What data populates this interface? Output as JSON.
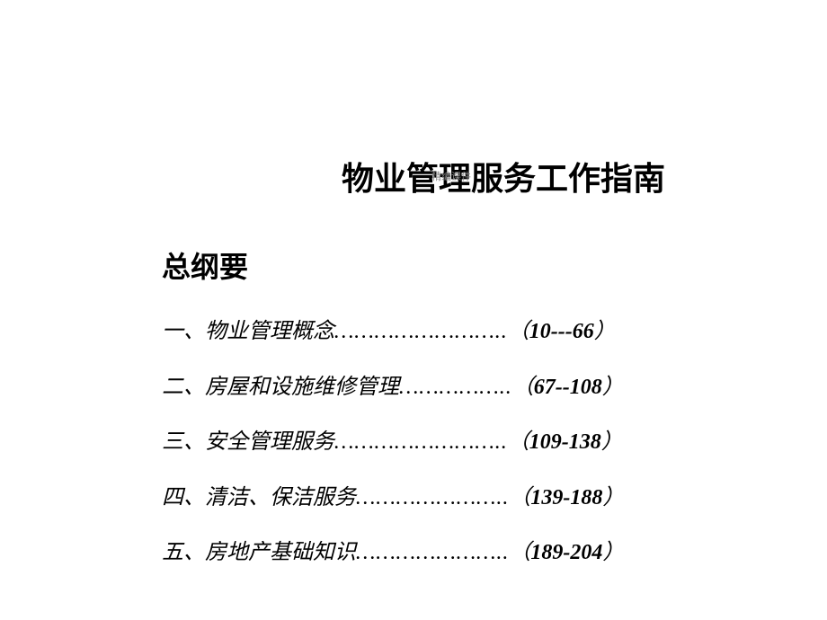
{
  "document": {
    "main_title": "物业管理服务工作指南",
    "watermark": "精编课件",
    "subtitle": "总纲要",
    "background_color": "#ffffff",
    "text_color": "#000000",
    "title_fontsize": 36,
    "subtitle_fontsize": 32,
    "item_fontsize": 24
  },
  "toc": [
    {
      "number": "一、",
      "text": "物业管理概念",
      "dots": "……………………..",
      "paren_open": "（",
      "pages": "10---66",
      "paren_close": "）"
    },
    {
      "number": "二、",
      "text": "房屋和设施维修管理",
      "dots": "……………..",
      "paren_open": "（",
      "pages": "67--108",
      "paren_close": "）"
    },
    {
      "number": "三、",
      "text": "安全管理服务",
      "dots": "……………………..",
      "paren_open": "（",
      "pages": "109-138",
      "paren_close": "）"
    },
    {
      "number": "四、",
      "text": "清洁、保洁服务",
      "dots": "…………………..",
      "paren_open": "（",
      "pages": "139-188",
      "paren_close": "）"
    },
    {
      "number": "五、",
      "text": "房地产基础知识",
      "dots": "…………………..",
      "paren_open": "（",
      "pages": "189-204",
      "paren_close": "）"
    }
  ]
}
